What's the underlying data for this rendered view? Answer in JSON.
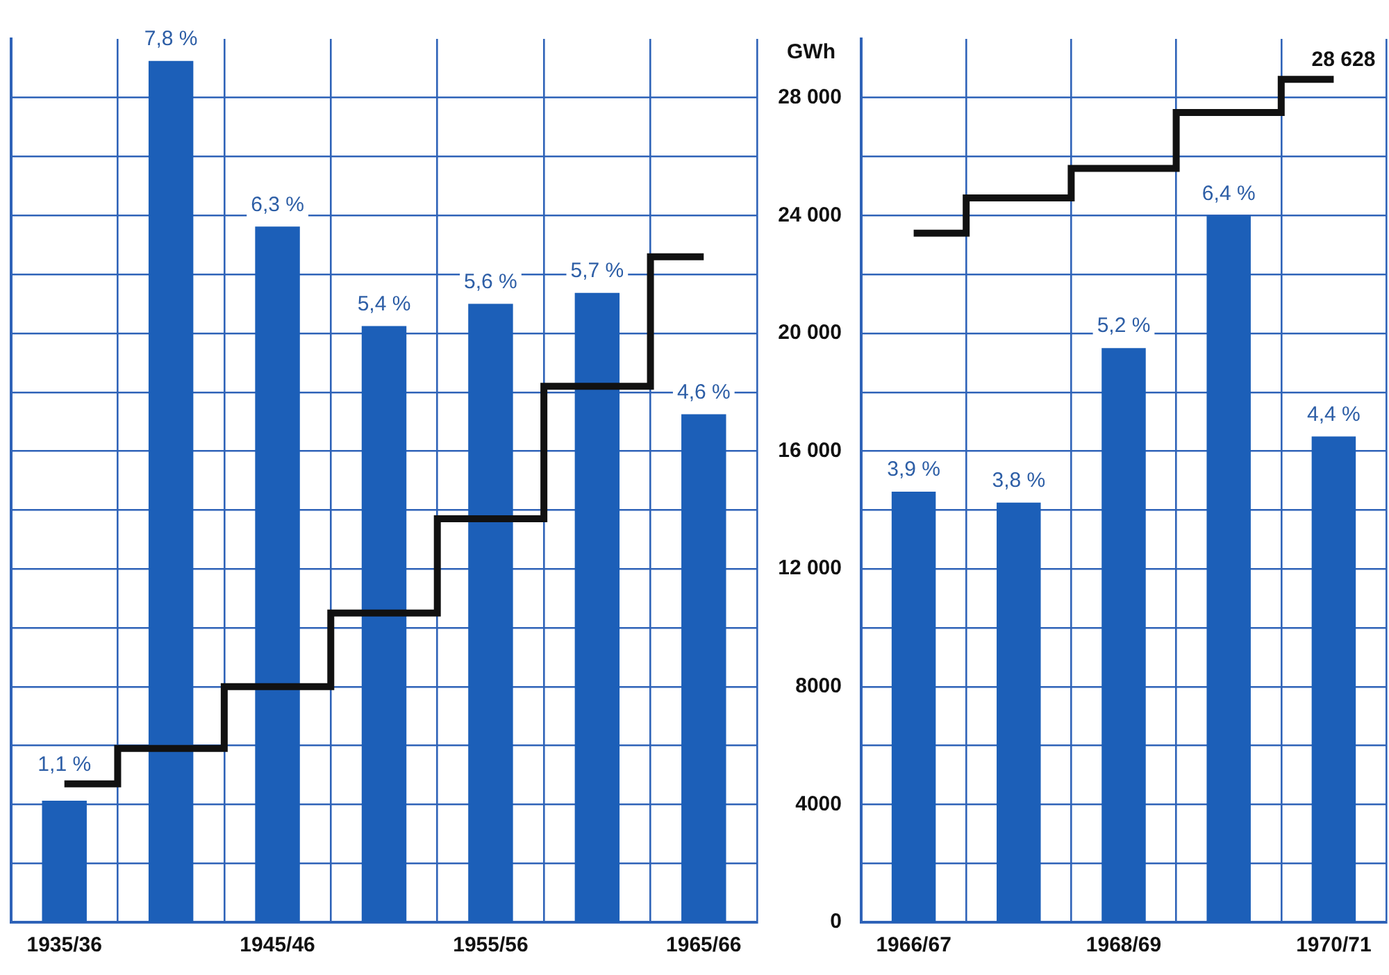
{
  "chart_data": [
    {
      "type": "bar",
      "categories": [
        "1935/36",
        null,
        "1945/46",
        null,
        "1955/56",
        null,
        "1965/66"
      ],
      "series": [
        {
          "axis": "y2",
          "color": "#1c5fb8",
          "values": [
            1.1,
            7.8,
            6.3,
            5.4,
            5.6,
            5.7,
            4.6
          ],
          "value_labels": [
            "1,1 %",
            "7,8 %",
            "6,3 %",
            "5,4 %",
            "5,6 %",
            "5,7 %",
            "4,6 %"
          ]
        },
        {
          "type": "step",
          "color": "#111111",
          "values": [
            4700,
            5900,
            8000,
            10500,
            13700,
            18200,
            22600
          ]
        }
      ],
      "ylim": [
        0,
        30000
      ],
      "yticks": [
        {
          "value": 0,
          "label": null
        },
        {
          "value": 2000,
          "label": null
        },
        {
          "value": 4000,
          "label": null
        },
        {
          "value": 6000,
          "label": null
        },
        {
          "value": 8000,
          "label": null
        },
        {
          "value": 10000,
          "label": null
        },
        {
          "value": 12000,
          "label": null
        },
        {
          "value": 14000,
          "label": null
        },
        {
          "value": 16000,
          "label": null
        },
        {
          "value": 18000,
          "label": null
        },
        {
          "value": 20000,
          "label": null
        },
        {
          "value": 22000,
          "label": null
        },
        {
          "value": 24000,
          "label": null
        },
        {
          "value": 26000,
          "label": null
        },
        {
          "value": 28000,
          "label": null
        }
      ],
      "y2lim": [
        0,
        8
      ],
      "grid": true,
      "tick_labels": "x"
    },
    {
      "type": "bar",
      "ylabel": "GWh",
      "categories": [
        "1966/67",
        null,
        "1968/69",
        null,
        "1970/71"
      ],
      "series": [
        {
          "axis": "y2",
          "color": "#1c5fb8",
          "values": [
            3.9,
            3.8,
            5.2,
            6.4,
            4.4
          ],
          "value_labels": [
            "3,9 %",
            "3,8 %",
            "5,2 %",
            "6,4 %",
            "4,4 %"
          ]
        },
        {
          "type": "step",
          "color": "#111111",
          "values": [
            23400,
            24600,
            25600,
            27500,
            28628
          ]
        }
      ],
      "ylim": [
        0,
        30000
      ],
      "yticks": [
        0,
        {
          "value": 2000,
          "label": null
        },
        4000,
        {
          "value": 6000,
          "label": null
        },
        8000,
        {
          "value": 10000,
          "label": null
        },
        {
          "value": 12000,
          "label": "12 000"
        },
        {
          "value": 14000,
          "label": null
        },
        {
          "value": 16000,
          "label": "16 000"
        },
        {
          "value": 18000,
          "label": null
        },
        {
          "value": 20000,
          "label": "20 000"
        },
        {
          "value": 22000,
          "label": null
        },
        {
          "value": 24000,
          "label": "24 000"
        },
        {
          "value": 26000,
          "label": null
        },
        {
          "value": 28000,
          "label": "28 000"
        }
      ],
      "y2lim": [
        0,
        8
      ],
      "grid": true,
      "annotations": [
        {
          "text": "28 628",
          "x": "1970/71",
          "y": 28628
        }
      ]
    }
  ]
}
